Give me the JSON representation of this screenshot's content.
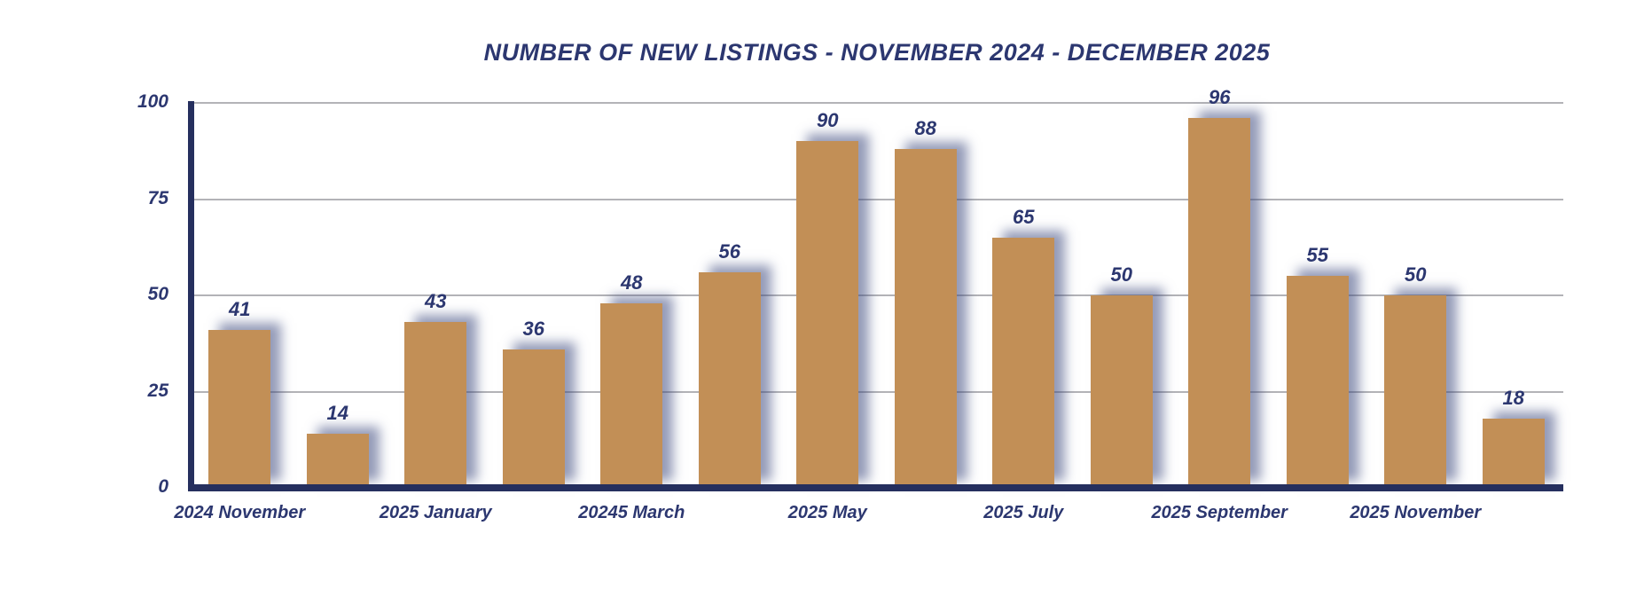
{
  "chart_data": {
    "type": "bar",
    "title": "NUMBER OF NEW LISTINGS - NOVEMBER 2024 - DECEMBER 2025",
    "values": [
      41,
      14,
      43,
      36,
      48,
      56,
      90,
      88,
      65,
      50,
      96,
      55,
      50,
      18
    ],
    "bar_value_labels": [
      "41",
      "14",
      "43",
      "36",
      "48",
      "56",
      "90",
      "88",
      "65",
      "50",
      "96",
      "55",
      "50",
      "18"
    ],
    "x_tick_labels": [
      "2024 November",
      "2025 January",
      "20245 March",
      "2025 May",
      "2025 July",
      "2025 September",
      "2025 November"
    ],
    "x_tick_bar_indices": [
      0,
      2,
      4,
      6,
      8,
      10,
      12
    ],
    "y_ticks": [
      "0",
      "25",
      "50",
      "75",
      "100"
    ],
    "ylim": [
      0,
      100
    ],
    "grid": "horizontal-gridlines-on",
    "legend": "none",
    "colors": {
      "bar_fill": "#c28f56",
      "bar_shadow": "rgba(60,72,125,0.55)",
      "text_navy": "#2c3770",
      "axis_navy": "#252f5e",
      "gridline_gray": "#b3b3b7",
      "background": "#ffffff"
    }
  }
}
